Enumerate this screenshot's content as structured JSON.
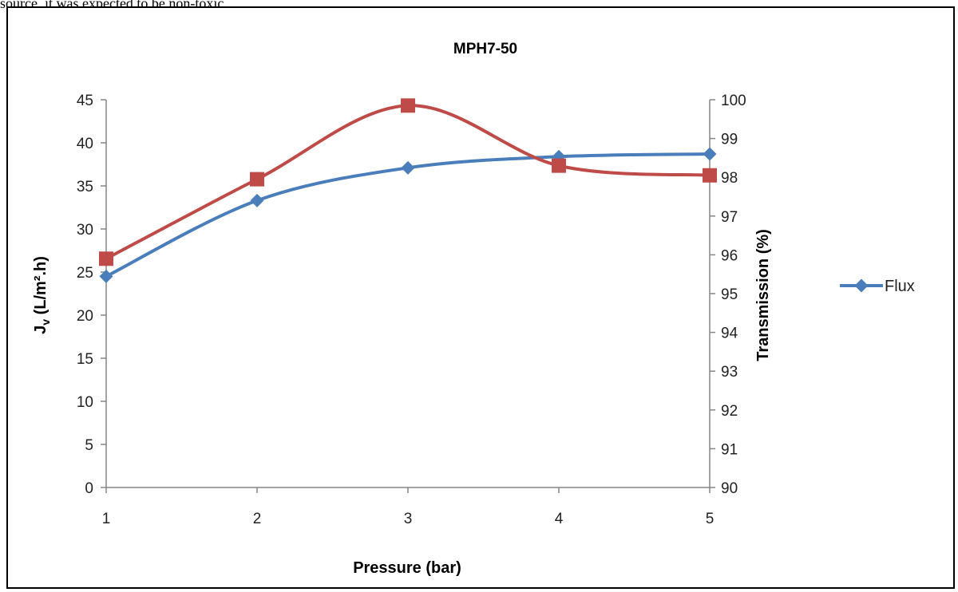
{
  "page_text": "source,   it   was   expected   to   be   non-toxic,",
  "chart_data": {
    "type": "line",
    "title": "MPH7-50",
    "xlabel": "Pressure (bar)",
    "ylabel": "Jv (L/m².h)",
    "y2label": "Transmission (%)",
    "x": [
      1,
      2,
      3,
      4,
      5
    ],
    "xlim": [
      1,
      5
    ],
    "ylim": [
      0,
      45
    ],
    "y2lim": [
      90,
      100
    ],
    "yticks": [
      0,
      5,
      10,
      15,
      20,
      25,
      30,
      35,
      40,
      45
    ],
    "y2ticks": [
      90,
      91,
      92,
      93,
      94,
      95,
      96,
      97,
      98,
      99,
      100
    ],
    "grid": false,
    "legend_position": "right",
    "series": [
      {
        "name": "Flux",
        "axis": "left",
        "color": "#4a7ebb",
        "marker": "diamond",
        "values": [
          24.5,
          33.3,
          37.1,
          38.4,
          38.7
        ]
      },
      {
        "axis": "right",
        "color": "#be4b48",
        "marker": "square",
        "values": [
          95.9,
          97.95,
          99.85,
          98.3,
          98.05
        ]
      }
    ]
  }
}
